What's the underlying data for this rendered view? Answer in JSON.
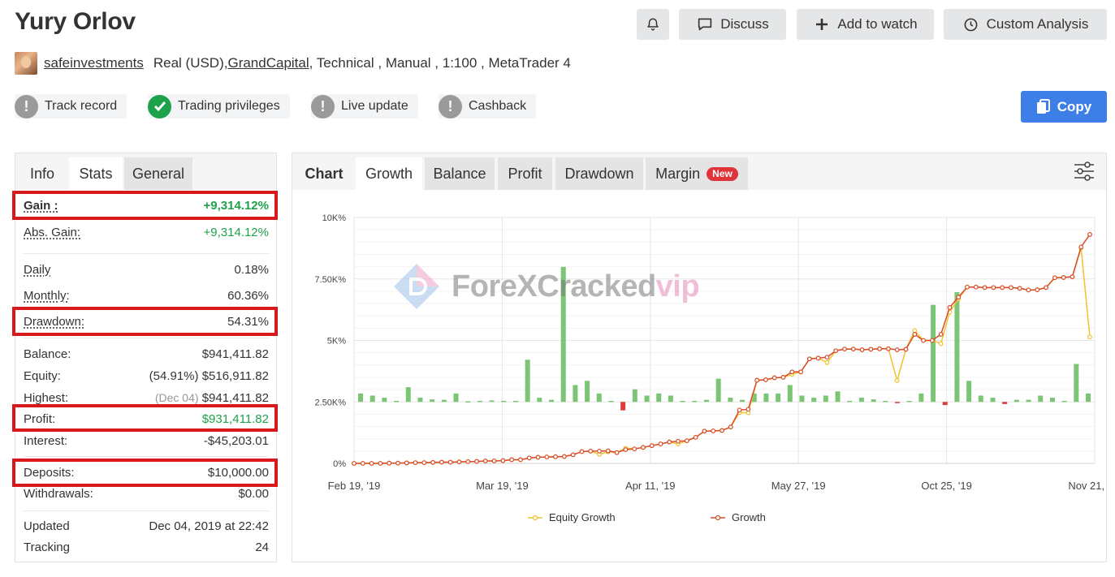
{
  "header": {
    "title": "Yury Orlov",
    "buttons": {
      "discuss": "Discuss",
      "add_to_watch": "Add to watch",
      "custom_analysis": "Custom Analysis",
      "copy": "Copy"
    }
  },
  "meta": {
    "username": "safeinvestments",
    "account_type": "Real (USD), ",
    "broker": "GrandCapital",
    "details": " , Technical , Manual , 1:100 , MetaTrader 4"
  },
  "badges": [
    {
      "label": "Track record",
      "status": "warning"
    },
    {
      "label": "Trading privileges",
      "status": "ok"
    },
    {
      "label": "Live update",
      "status": "warning"
    },
    {
      "label": "Cashback",
      "status": "warning"
    }
  ],
  "stats_tabs": [
    "Info",
    "Stats",
    "General"
  ],
  "stats": {
    "gain": {
      "label": "Gain :",
      "value": "+9,314.12%"
    },
    "abs_gain": {
      "label": "Abs. Gain:",
      "value": "+9,314.12%"
    },
    "daily": {
      "label": "Daily",
      "value": "0.18%"
    },
    "monthly": {
      "label": "Monthly:",
      "value": "60.36%"
    },
    "drawdown": {
      "label": "Drawdown:",
      "value": "54.31%"
    },
    "balance": {
      "label": "Balance:",
      "value": "$941,411.82"
    },
    "equity": {
      "label": "Equity:",
      "pct": "(54.91%)",
      "value": "$516,911.82"
    },
    "highest": {
      "label": "Highest:",
      "date": "(Dec 04)",
      "value": "$941,411.82"
    },
    "profit": {
      "label": "Profit:",
      "value": "$931,411.82"
    },
    "interest": {
      "label": "Interest:",
      "value": "-$45,203.01"
    },
    "deposits": {
      "label": "Deposits:",
      "value": "$10,000.00"
    },
    "withdrawals": {
      "label": "Withdrawals:",
      "value": "$0.00"
    },
    "updated": {
      "label": "Updated",
      "value": "Dec 04, 2019 at 22:42"
    },
    "tracking": {
      "label": "Tracking",
      "value": "24"
    }
  },
  "chart_tabs": {
    "label": "Chart",
    "tabs": [
      "Growth",
      "Balance",
      "Profit",
      "Drawdown",
      "Margin"
    ],
    "active": "Growth",
    "new_badge": "New"
  },
  "watermark": {
    "text": "ForeXCracked",
    "vip": "vip"
  },
  "colors": {
    "growth": "#d84a2a",
    "equity_growth": "#f2c12e",
    "bar_positive": "#7cc576",
    "bar_negative": "#e03a3a",
    "highlight_box": "#d7191c",
    "copy_button": "#3d7fe6"
  },
  "chart_data": {
    "type": "line",
    "y_ticks": [
      "10K%",
      "7.50K%",
      "5K%",
      "2.50K%",
      "0%"
    ],
    "x_ticks": [
      "Feb 19, '19",
      "Mar 19, '19",
      "Apr 11, '19",
      "May 27, '19",
      "Oct 25, '19",
      "Nov 21, '19"
    ],
    "ylim": [
      0,
      10000
    ],
    "legend": [
      "Equity Growth",
      "Growth"
    ],
    "legend_position": "bottom",
    "series": [
      {
        "name": "Growth",
        "values": [
          0,
          0,
          0,
          0,
          10,
          10,
          20,
          30,
          30,
          40,
          50,
          50,
          60,
          70,
          80,
          100,
          100,
          110,
          150,
          150,
          220,
          250,
          260,
          270,
          280,
          350,
          480,
          500,
          500,
          510,
          440,
          560,
          590,
          650,
          720,
          790,
          870,
          900,
          920,
          1060,
          1310,
          1320,
          1340,
          1480,
          2170,
          2200,
          3380,
          3400,
          3480,
          3500,
          3720,
          3720,
          4250,
          4280,
          4320,
          4580,
          4650,
          4650,
          4620,
          4640,
          4660,
          4660,
          4620,
          4640,
          5250,
          5000,
          5000,
          5250,
          6340,
          6760,
          7170,
          7170,
          7150,
          7150,
          7150,
          7150,
          7120,
          7050,
          7060,
          7150,
          7550,
          7560,
          7590,
          8800,
          9310
        ]
      },
      {
        "name": "Equity Growth",
        "values": [
          0,
          0,
          0,
          0,
          10,
          10,
          20,
          30,
          30,
          40,
          50,
          50,
          60,
          70,
          80,
          100,
          100,
          110,
          150,
          150,
          220,
          250,
          260,
          270,
          280,
          350,
          480,
          500,
          370,
          470,
          440,
          620,
          590,
          650,
          720,
          790,
          870,
          790,
          920,
          1060,
          1310,
          1320,
          1340,
          1480,
          2070,
          2060,
          3380,
          3400,
          3480,
          3500,
          3620,
          3720,
          4250,
          4280,
          4100,
          4580,
          4650,
          4650,
          4620,
          4640,
          4660,
          4670,
          3370,
          4640,
          5400,
          5000,
          5000,
          4870,
          6150,
          6690,
          7170,
          7170,
          7150,
          7150,
          7150,
          7150,
          7120,
          7050,
          7060,
          7150,
          7550,
          7560,
          7590,
          8760,
          5140
        ]
      }
    ],
    "bars": [
      400,
      300,
      200,
      50,
      700,
      200,
      120,
      100,
      400,
      30,
      50,
      70,
      50,
      50,
      2000,
      200,
      100,
      6400,
      800,
      1000,
      400,
      50,
      -400,
      600,
      300,
      400,
      300,
      50,
      50,
      100,
      1100,
      200,
      100,
      400,
      400,
      400,
      800,
      300,
      200,
      300,
      500,
      50,
      200,
      120,
      50,
      -50,
      50,
      400,
      4600,
      -150,
      5200,
      1000,
      300,
      200,
      -100,
      100,
      100,
      300,
      200,
      50,
      1800,
      400
    ]
  }
}
